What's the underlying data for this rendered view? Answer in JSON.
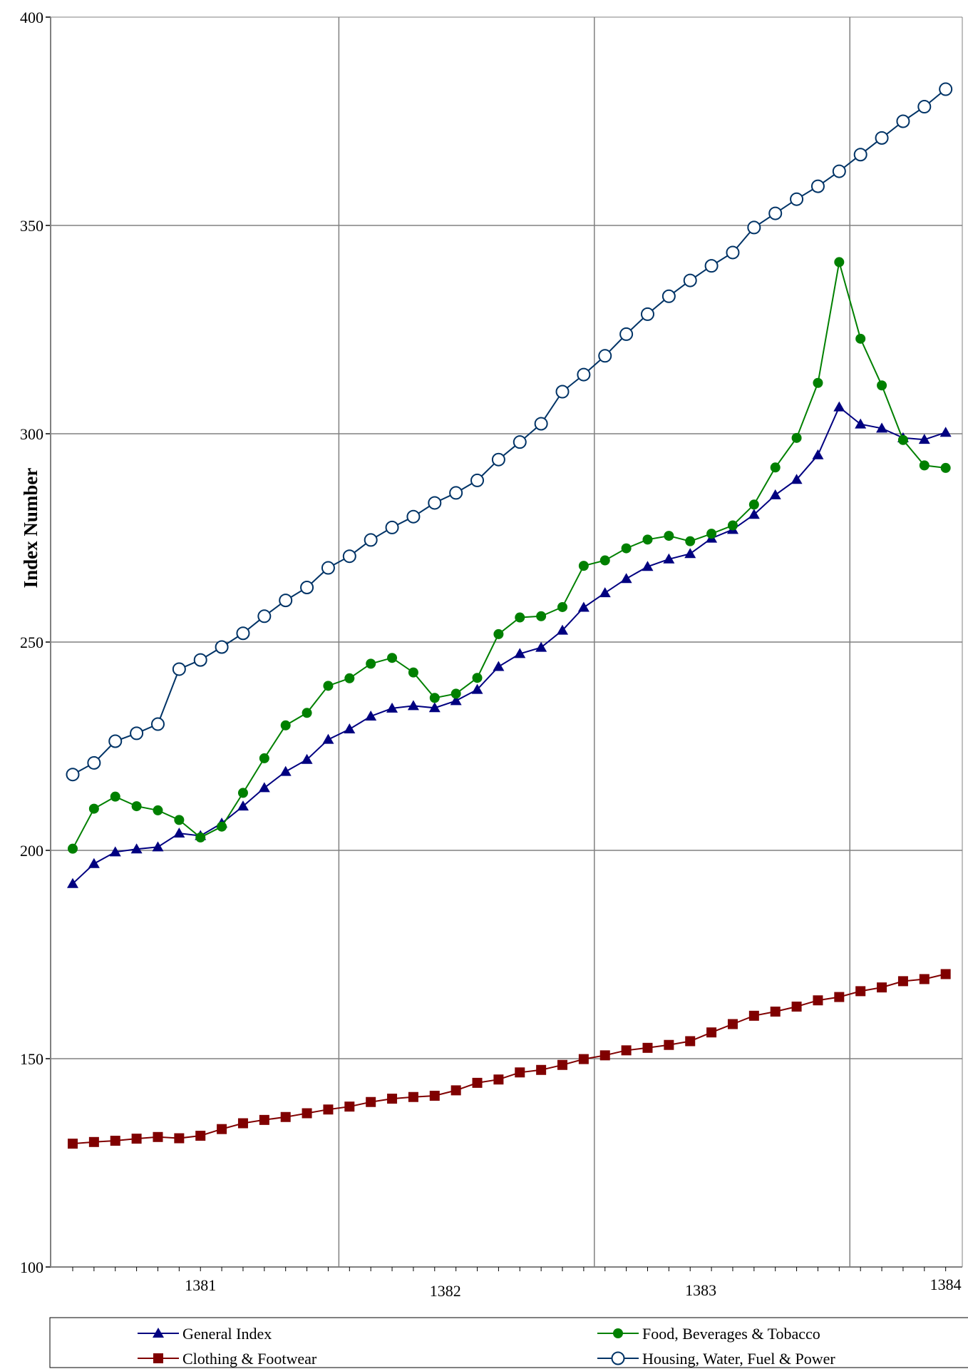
{
  "chart_data": {
    "type": "line",
    "title": "",
    "ylabel": "Index Number",
    "xlabel": "",
    "ylim": [
      100,
      400
    ],
    "yticks": [
      100,
      150,
      200,
      250,
      300,
      350,
      400
    ],
    "grid": true,
    "legend_position": "bottom",
    "x_labels": [
      {
        "label": "1381",
        "month": 6
      },
      {
        "label": "1382",
        "month": 17.5
      },
      {
        "label": "1383",
        "month": 29.5
      },
      {
        "label": "1384",
        "month": 41
      }
    ],
    "year_dividers": [
      12.5,
      24.5,
      36.5
    ],
    "series": [
      {
        "name": "General Index",
        "color": "#000080",
        "marker": "triangle",
        "values": [
          192.0,
          196.8,
          199.6,
          200.3,
          200.8,
          204.1,
          203.5,
          206.5,
          210.6,
          215.0,
          218.9,
          221.8,
          226.6,
          229.1,
          232.2,
          234.1,
          234.7,
          234.2,
          235.9,
          238.6,
          244.1,
          247.2,
          248.7,
          252.8,
          258.3,
          261.8,
          265.2,
          268.1,
          269.9,
          271.2,
          274.9,
          277.0,
          280.6,
          285.3,
          289.0,
          294.9,
          306.4,
          302.3,
          301.3,
          299.0,
          298.6,
          300.3
        ]
      },
      {
        "name": "Food, Beverages & Tobacco",
        "color": "#008000",
        "marker": "circle",
        "values": [
          200.4,
          210.0,
          212.9,
          210.6,
          209.6,
          207.3,
          203.1,
          205.7,
          213.8,
          222.1,
          230.0,
          233.0,
          239.5,
          241.3,
          244.8,
          246.2,
          242.7,
          236.6,
          237.6,
          241.4,
          251.9,
          255.9,
          256.2,
          258.4,
          268.3,
          269.6,
          272.5,
          274.6,
          275.5,
          274.2,
          276.0,
          278.0,
          283.0,
          291.9,
          299.0,
          312.2,
          341.2,
          322.8,
          311.6,
          298.5,
          292.4,
          291.8
        ]
      },
      {
        "name": "Clothing & Footwear",
        "color": "#800000",
        "marker": "square",
        "values": [
          129.6,
          130.0,
          130.3,
          130.8,
          131.2,
          130.9,
          131.5,
          133.1,
          134.5,
          135.3,
          136.0,
          136.9,
          137.8,
          138.5,
          139.6,
          140.4,
          140.8,
          141.1,
          142.4,
          144.2,
          145.0,
          146.7,
          147.3,
          148.5,
          149.9,
          150.8,
          152.0,
          152.6,
          153.3,
          154.2,
          156.3,
          158.3,
          160.3,
          161.3,
          162.5,
          164.0,
          164.8,
          166.2,
          167.1,
          168.6,
          169.1,
          170.3
        ]
      },
      {
        "name": "Housing, Water, Fuel & Power",
        "color": "#003366",
        "marker": "open-circle",
        "values": [
          218.2,
          221.0,
          226.2,
          228.1,
          230.3,
          243.5,
          245.7,
          248.8,
          252.1,
          256.2,
          260.0,
          263.1,
          267.8,
          270.6,
          274.5,
          277.5,
          280.1,
          283.4,
          285.8,
          288.8,
          293.8,
          298.0,
          302.4,
          310.1,
          314.2,
          318.7,
          323.9,
          328.7,
          333.0,
          336.8,
          340.3,
          343.5,
          349.5,
          352.9,
          356.3,
          359.4,
          363.0,
          367.0,
          371.0,
          375.0,
          378.5,
          382.7
        ]
      }
    ]
  }
}
